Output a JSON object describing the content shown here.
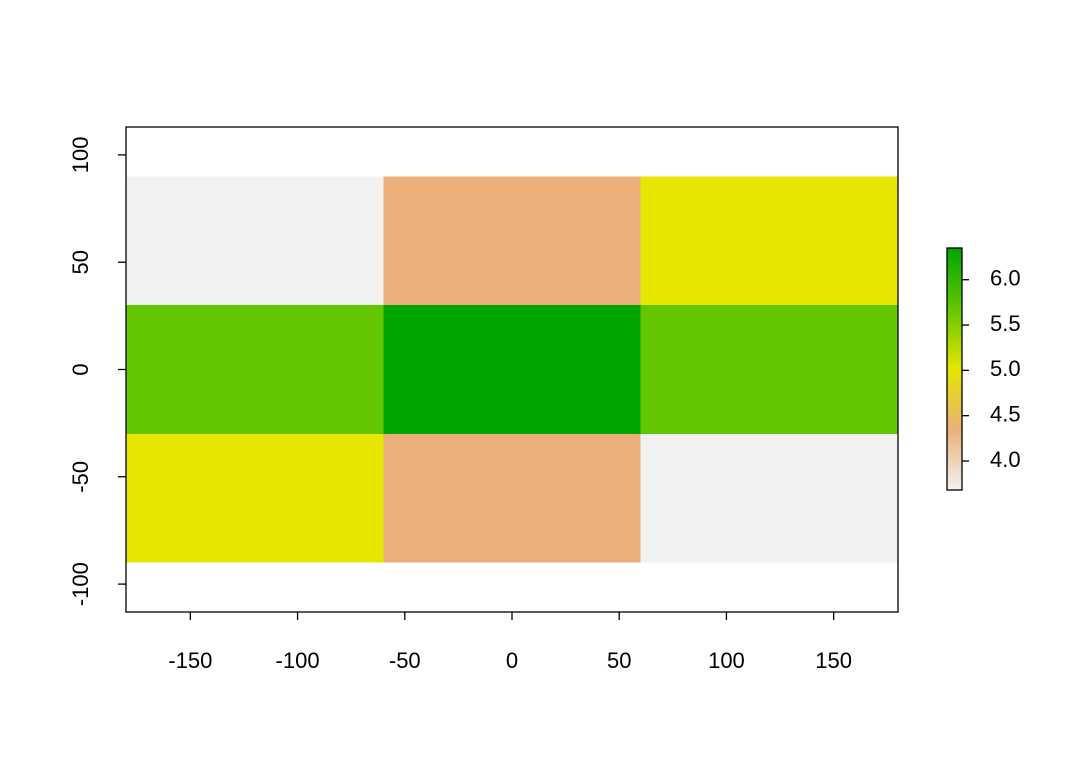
{
  "chart_data": {
    "type": "raster",
    "x_edges": [
      -180,
      -60,
      60,
      180
    ],
    "y_edges": [
      -90,
      -30,
      30,
      90
    ],
    "values": [
      [
        5.01,
        4.35,
        3.68
      ],
      [
        5.68,
        6.35,
        5.68
      ],
      [
        3.68,
        4.35,
        5.01
      ]
    ],
    "palette": [
      "#F2F2F2",
      "#EBB07A",
      "#E6E600",
      "#63C600",
      "#00A600"
    ],
    "xlim": [
      -180,
      180
    ],
    "ylim": [
      -113,
      113
    ],
    "xticks": [
      -150,
      -100,
      -50,
      0,
      50,
      100,
      150
    ],
    "yticks": [
      -100,
      -50,
      0,
      50,
      100
    ],
    "zlim": [
      3.68,
      6.35
    ],
    "zticks": [
      {
        "value": 4,
        "label": "4.0"
      },
      {
        "value": 4.5,
        "label": "4.5"
      },
      {
        "value": 5,
        "label": "5.0"
      },
      {
        "value": 5.5,
        "label": "5.5"
      },
      {
        "value": 6,
        "label": "6.0"
      }
    ]
  }
}
